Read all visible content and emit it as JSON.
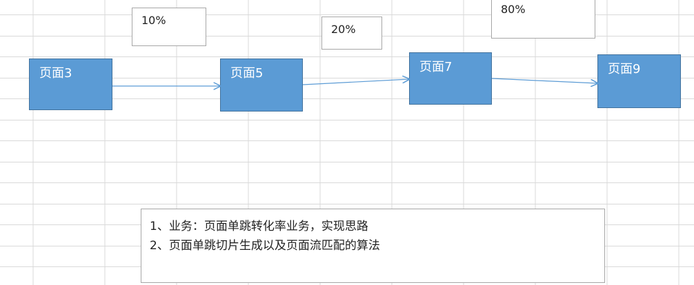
{
  "diagram": {
    "nodes": [
      {
        "id": "n3",
        "label": "页面3"
      },
      {
        "id": "n5",
        "label": "页面5"
      },
      {
        "id": "n7",
        "label": "页面7"
      },
      {
        "id": "n9",
        "label": "页面9"
      }
    ],
    "edges": [
      {
        "from": "n3",
        "to": "n5"
      },
      {
        "from": "n5",
        "to": "n7"
      },
      {
        "from": "n7",
        "to": "n9"
      }
    ],
    "percentages": [
      "10%",
      "20%",
      "80%"
    ],
    "note": {
      "line1": "1、业务：页面单跳转化率业务，实现思路",
      "line2": "2、页面单跳切片生成以及页面流匹配的算法"
    },
    "colors": {
      "node_fill": "#5b9bd5",
      "node_border": "#41719c",
      "arrow": "#5b9bd5",
      "grid": "#d9d9d9"
    }
  }
}
